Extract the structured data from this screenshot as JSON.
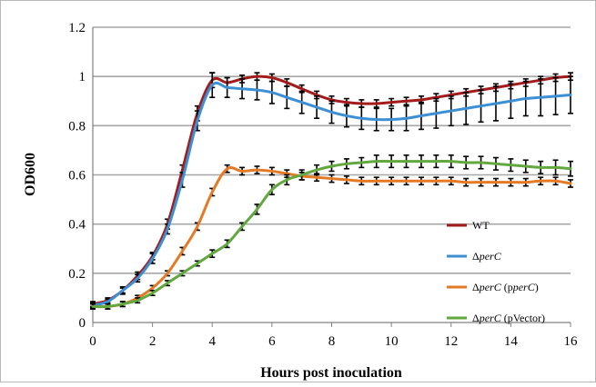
{
  "chart_data": {
    "type": "line",
    "title": "",
    "xlabel": "Hours post inoculation",
    "ylabel": "OD600",
    "xlim": [
      0,
      16
    ],
    "ylim": [
      0,
      1.2
    ],
    "xticks": [
      "0",
      "2",
      "4",
      "6",
      "8",
      "10",
      "12",
      "14",
      "16"
    ],
    "yticks": [
      "0",
      "0.2",
      "0.4",
      "0.6",
      "0.8",
      "1",
      "1.2"
    ],
    "grid": "horizontal",
    "legend_position": "right",
    "error_bars": true,
    "series": [
      {
        "name_parts": [
          "WT"
        ],
        "color": "#a31b1b",
        "x": [
          0,
          0.5,
          1,
          1.5,
          2,
          2.5,
          3,
          3.5,
          4,
          4.5,
          5,
          5.5,
          6,
          6.5,
          7,
          7.5,
          8,
          8.5,
          9,
          9.5,
          10,
          10.5,
          11,
          11.5,
          12,
          12.5,
          13,
          13.5,
          14,
          14.5,
          15,
          15.5,
          16
        ],
        "y": [
          0.075,
          0.09,
          0.13,
          0.19,
          0.27,
          0.4,
          0.62,
          0.85,
          0.985,
          0.975,
          0.99,
          1.0,
          0.995,
          0.975,
          0.95,
          0.925,
          0.905,
          0.895,
          0.89,
          0.89,
          0.895,
          0.9,
          0.905,
          0.915,
          0.925,
          0.935,
          0.945,
          0.955,
          0.965,
          0.975,
          0.985,
          0.995,
          1.0
        ],
        "err": [
          0.01,
          0.01,
          0.01,
          0.015,
          0.015,
          0.02,
          0.02,
          0.03,
          0.03,
          0.02,
          0.015,
          0.015,
          0.015,
          0.015,
          0.015,
          0.015,
          0.015,
          0.015,
          0.015,
          0.015,
          0.015,
          0.015,
          0.015,
          0.015,
          0.015,
          0.015,
          0.015,
          0.015,
          0.015,
          0.015,
          0.015,
          0.015,
          0.015
        ]
      },
      {
        "name_parts": [
          "Δ",
          "perC"
        ],
        "color": "#3d8fd4",
        "x": [
          0,
          0.5,
          1,
          1.5,
          2,
          2.5,
          3,
          3.5,
          4,
          4.5,
          5,
          5.5,
          6,
          6.5,
          7,
          7.5,
          8,
          8.5,
          9,
          9.5,
          10,
          10.5,
          11,
          11.5,
          12,
          12.5,
          13,
          13.5,
          14,
          14.5,
          15,
          15.5,
          16
        ],
        "y": [
          0.07,
          0.085,
          0.13,
          0.18,
          0.26,
          0.38,
          0.58,
          0.82,
          0.965,
          0.955,
          0.95,
          0.945,
          0.935,
          0.915,
          0.895,
          0.875,
          0.855,
          0.84,
          0.83,
          0.825,
          0.825,
          0.83,
          0.84,
          0.85,
          0.86,
          0.87,
          0.88,
          0.89,
          0.9,
          0.91,
          0.915,
          0.92,
          0.925
        ],
        "err": [
          0.01,
          0.01,
          0.015,
          0.015,
          0.02,
          0.02,
          0.03,
          0.04,
          0.05,
          0.04,
          0.04,
          0.04,
          0.045,
          0.045,
          0.045,
          0.045,
          0.045,
          0.045,
          0.045,
          0.045,
          0.045,
          0.05,
          0.055,
          0.06,
          0.06,
          0.065,
          0.065,
          0.07,
          0.07,
          0.07,
          0.075,
          0.075,
          0.075
        ]
      },
      {
        "name_parts": [
          "Δ",
          "perC",
          " (p",
          "perC",
          ")"
        ],
        "color": "#e57a26",
        "x": [
          0,
          0.5,
          1,
          1.5,
          2,
          2.5,
          3,
          3.5,
          4,
          4.5,
          5,
          5.5,
          6,
          6.5,
          7,
          7.5,
          8,
          8.5,
          9,
          9.5,
          10,
          10.5,
          11,
          11.5,
          12,
          12.5,
          13,
          13.5,
          14,
          14.5,
          15,
          15.5,
          16
        ],
        "y": [
          0.065,
          0.065,
          0.075,
          0.1,
          0.14,
          0.2,
          0.29,
          0.39,
          0.53,
          0.625,
          0.615,
          0.62,
          0.615,
          0.605,
          0.595,
          0.59,
          0.585,
          0.58,
          0.575,
          0.575,
          0.575,
          0.575,
          0.575,
          0.575,
          0.575,
          0.57,
          0.57,
          0.57,
          0.57,
          0.57,
          0.575,
          0.575,
          0.565
        ],
        "err": [
          0.01,
          0.01,
          0.01,
          0.01,
          0.01,
          0.01,
          0.015,
          0.015,
          0.015,
          0.015,
          0.015,
          0.015,
          0.015,
          0.015,
          0.015,
          0.015,
          0.015,
          0.015,
          0.015,
          0.015,
          0.015,
          0.015,
          0.015,
          0.015,
          0.015,
          0.015,
          0.015,
          0.015,
          0.015,
          0.015,
          0.015,
          0.015,
          0.015
        ]
      },
      {
        "name_parts": [
          "Δ",
          "perC",
          " (pVector)"
        ],
        "color": "#62a83e",
        "x": [
          0,
          0.5,
          1,
          1.5,
          2,
          2.5,
          3,
          3.5,
          4,
          4.5,
          5,
          5.5,
          6,
          6.5,
          7,
          7.5,
          8,
          8.5,
          9,
          9.5,
          10,
          10.5,
          11,
          11.5,
          12,
          12.5,
          13,
          13.5,
          14,
          14.5,
          15,
          15.5,
          16
        ],
        "y": [
          0.065,
          0.065,
          0.075,
          0.09,
          0.12,
          0.16,
          0.2,
          0.24,
          0.28,
          0.32,
          0.39,
          0.46,
          0.54,
          0.58,
          0.6,
          0.62,
          0.635,
          0.645,
          0.65,
          0.655,
          0.655,
          0.655,
          0.655,
          0.655,
          0.655,
          0.65,
          0.65,
          0.645,
          0.64,
          0.635,
          0.63,
          0.63,
          0.625
        ],
        "err": [
          0.01,
          0.01,
          0.01,
          0.01,
          0.01,
          0.01,
          0.01,
          0.01,
          0.015,
          0.015,
          0.015,
          0.02,
          0.02,
          0.02,
          0.02,
          0.02,
          0.02,
          0.02,
          0.02,
          0.025,
          0.025,
          0.025,
          0.025,
          0.025,
          0.025,
          0.025,
          0.025,
          0.025,
          0.025,
          0.025,
          0.025,
          0.03,
          0.03
        ]
      }
    ]
  }
}
